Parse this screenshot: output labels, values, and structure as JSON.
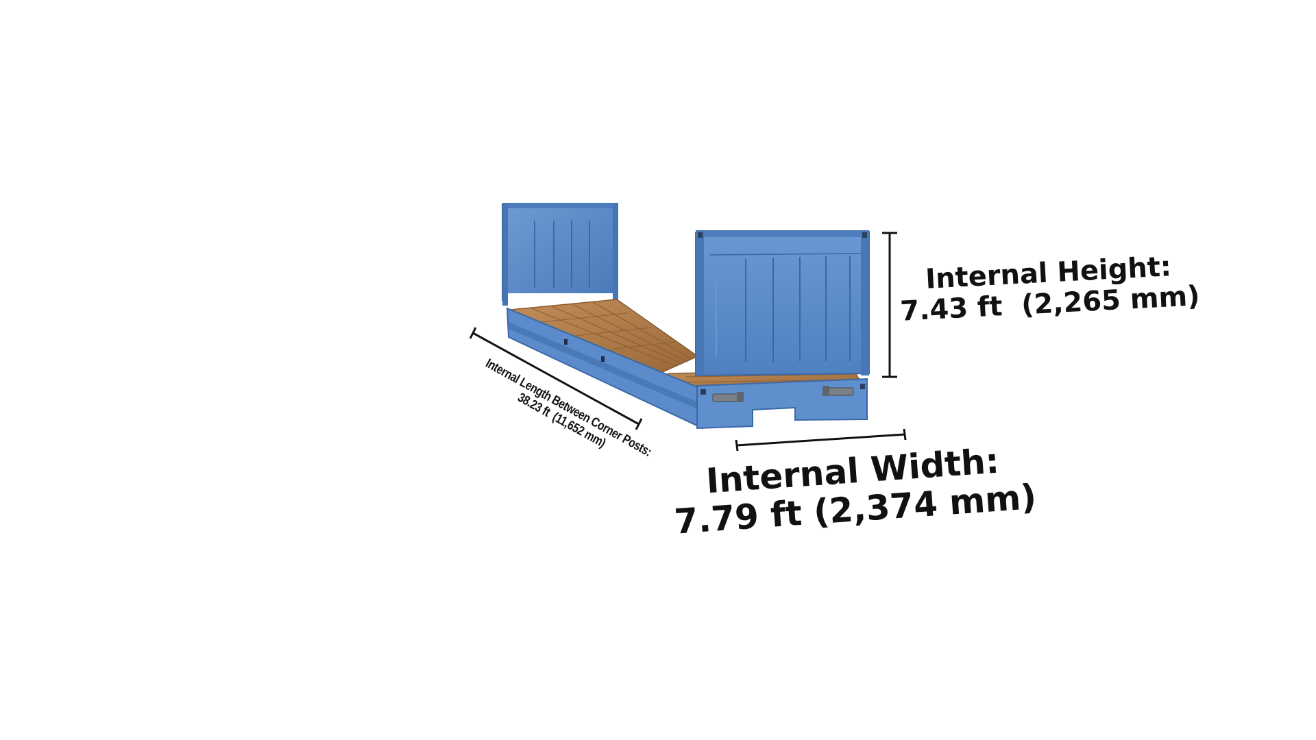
{
  "colors": {
    "container_blue": "#5f8fcd",
    "container_dark": "#3e6fb0",
    "floor_wood": "#b07d4c",
    "dimension_line": "#111111"
  },
  "dimensions": {
    "height": {
      "title": "Internal Height:",
      "value": "7.43 ft  (2,265 mm)"
    },
    "width": {
      "title": "Internal Width:",
      "value": "7.79 ft (2,374 mm)"
    },
    "length": {
      "title": "Internal Length Between Corner Posts:",
      "value": "38.23 ft  (11,652 mm)"
    }
  }
}
